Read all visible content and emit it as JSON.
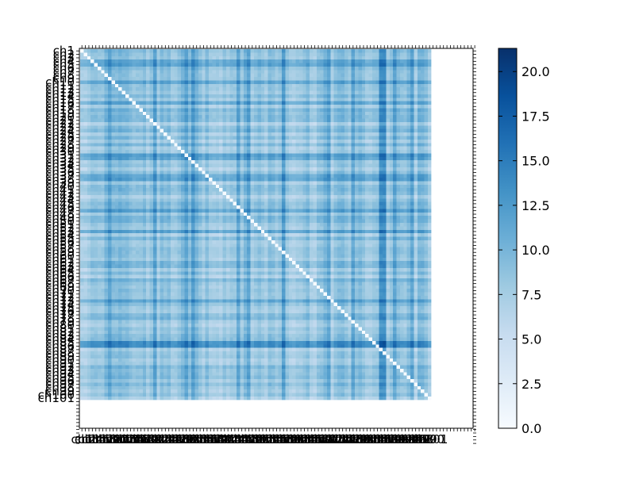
{
  "chart_data": {
    "type": "heatmap",
    "title": "",
    "xlabel": "",
    "ylabel": "",
    "row_count": 101,
    "row_labels": [
      "ch1",
      "ch2",
      "ch3",
      "ch4",
      "ch5",
      "ch6",
      "ch7",
      "ch8",
      "ch9",
      "ch10",
      "ch11",
      "ch12",
      "ch13",
      "ch14",
      "ch15",
      "ch16",
      "ch17",
      "ch18",
      "ch19",
      "ch20",
      "ch21",
      "ch22",
      "ch23",
      "ch24",
      "ch25",
      "ch26",
      "ch27",
      "ch28",
      "ch29",
      "ch30",
      "ch31",
      "ch32",
      "ch33",
      "ch34",
      "ch35",
      "ch36",
      "ch37",
      "ch38",
      "ch39",
      "ch40",
      "ch41",
      "ch42",
      "ch43",
      "ch44",
      "ch45",
      "ch46",
      "ch47",
      "ch48",
      "ch49",
      "ch50",
      "ch51",
      "ch52",
      "ch53",
      "ch54",
      "ch55",
      "ch56",
      "ch57",
      "ch58",
      "ch59",
      "ch60",
      "ch61",
      "ch62",
      "ch63",
      "ch64",
      "ch65",
      "ch66",
      "ch67",
      "ch68",
      "ch69",
      "ch70",
      "ch71",
      "ch72",
      "ch73",
      "ch74",
      "ch75",
      "ch76",
      "ch77",
      "ch78",
      "ch79",
      "ch80",
      "ch81",
      "ch82",
      "ch83",
      "ch84",
      "ch85",
      "ch86",
      "ch87",
      "ch88",
      "ch89",
      "ch90",
      "ch91",
      "ch92",
      "ch93",
      "ch94",
      "ch95",
      "ch96",
      "ch97",
      "ch98",
      "ch99",
      "ch100",
      "ch101"
    ],
    "x_tick_count": 114,
    "y_tick_count": 114,
    "value_range": [
      0,
      21.3
    ],
    "diagonal_value": 0,
    "strong_rows": [
      3,
      4,
      9,
      15,
      30,
      31,
      36,
      37,
      46,
      52,
      72,
      84,
      85
    ],
    "strong_cols": [
      8,
      21,
      30,
      32,
      45,
      48,
      58,
      71,
      78,
      87,
      90,
      95
    ],
    "very_strong_cols": [
      86,
      87
    ],
    "very_strong_rows": [
      84,
      85
    ],
    "colorbar": {
      "min": 0,
      "max": 21.3,
      "ticks": [
        0.0,
        2.5,
        5.0,
        7.5,
        10.0,
        12.5,
        15.0,
        17.5,
        20.0
      ],
      "tick_labels": [
        "0.0",
        "2.5",
        "5.0",
        "7.5",
        "10.0",
        "12.5",
        "15.0",
        "17.5",
        "20.0"
      ],
      "colormap": [
        "#f7fbff",
        "#deebf7",
        "#c6dbef",
        "#9ecae1",
        "#6baed6",
        "#4292c6",
        "#2171b5",
        "#08519c",
        "#08306b"
      ]
    },
    "grid": false,
    "legend": "none"
  }
}
